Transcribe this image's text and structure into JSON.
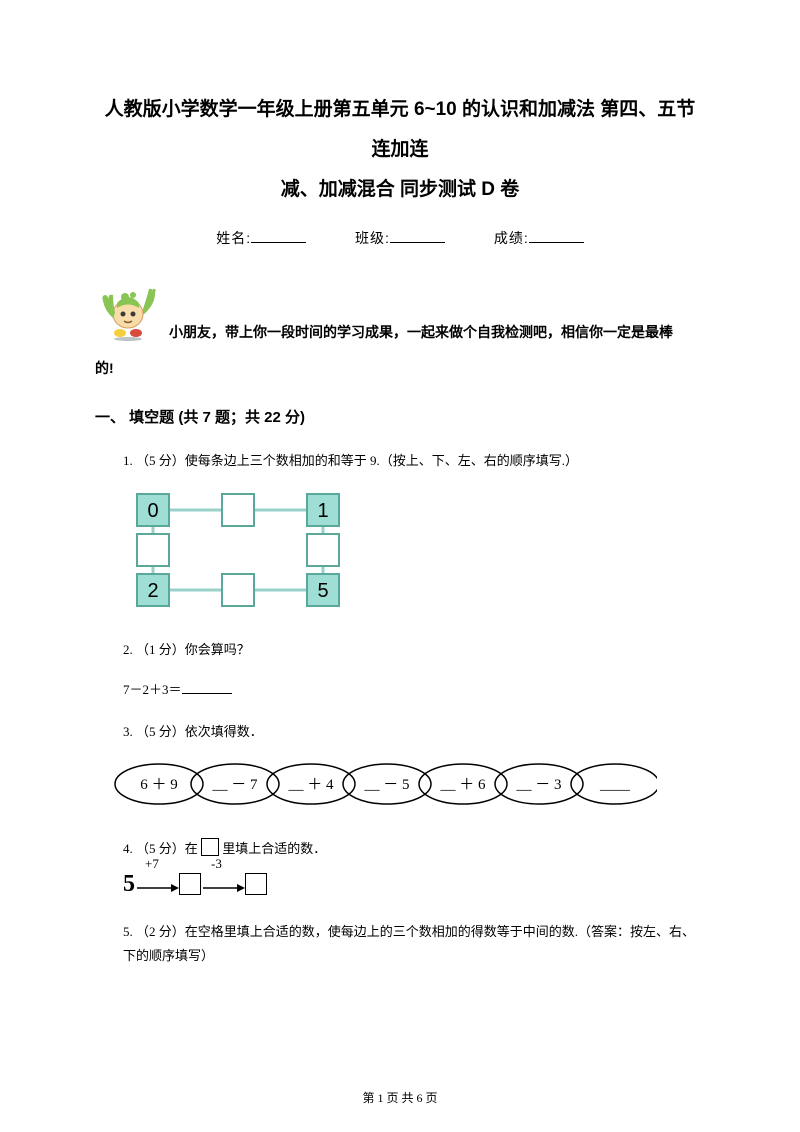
{
  "title_line1": "人教版小学数学一年级上册第五单元 6~10 的认识和加减法 第四、五节 连加连",
  "title_line2": "减、加减混合 同步测试 D 卷",
  "info": {
    "name_label": "姓名:",
    "class_label": "班级:",
    "score_label": "成绩:"
  },
  "intro1": "小朋友，带上你一段时间的学习成果，一起来做个自我检测吧，相信你一定是最棒",
  "intro2": "的!",
  "section1": "一、 填空题 (共 7 题；共 22 分)",
  "q1": "1.  （5 分）使每条边上三个数相加的和等于 9.（按上、下、左、右的顺序填写.）",
  "q2": "2.  （1 分）你会算吗？",
  "q2_expr": "7－2＋3＝",
  "q3": "3.  （5 分）依次填得数．",
  "q4_pre": "4.  （5 分）在 ",
  "q4_post": " 里填上合适的数．",
  "q5": "5.  （2 分）在空格里填上合适的数，使每边上的三个数相加的得数等于中间的数.（答案：按左、右、下的顺序填写）",
  "fig1": {
    "stroke": "#99d0c9",
    "fill_box": "#9eded4",
    "fill_empty": "#ffffff",
    "nums": {
      "tl": "0",
      "tr": "1",
      "bl": "2",
      "br": "5"
    }
  },
  "fig3": {
    "cells": [
      "6 ＋ 9",
      "＿ － 7",
      "＿ ＋ 4",
      "＿ － 5",
      "＿ ＋ 6",
      "＿ － 3",
      "＿＿"
    ],
    "font": "'Times New Roman',serif"
  },
  "fig4": {
    "start": "5",
    "op1": "+7",
    "op2": "-3"
  },
  "footer": {
    "pre": "第 ",
    "page": "1",
    "mid": " 页 共 ",
    "total": "6",
    "post": " 页"
  },
  "colors": {
    "mascot_green": "#88c552",
    "mascot_skin": "#f8dcaa",
    "mascot_skin_d": "#d69c5c",
    "mascot_eye": "#3a3a3a",
    "mascot_yellow": "#f4cf3c",
    "mascot_red": "#d94b3f",
    "mascot_grey": "#7a8a8f"
  }
}
